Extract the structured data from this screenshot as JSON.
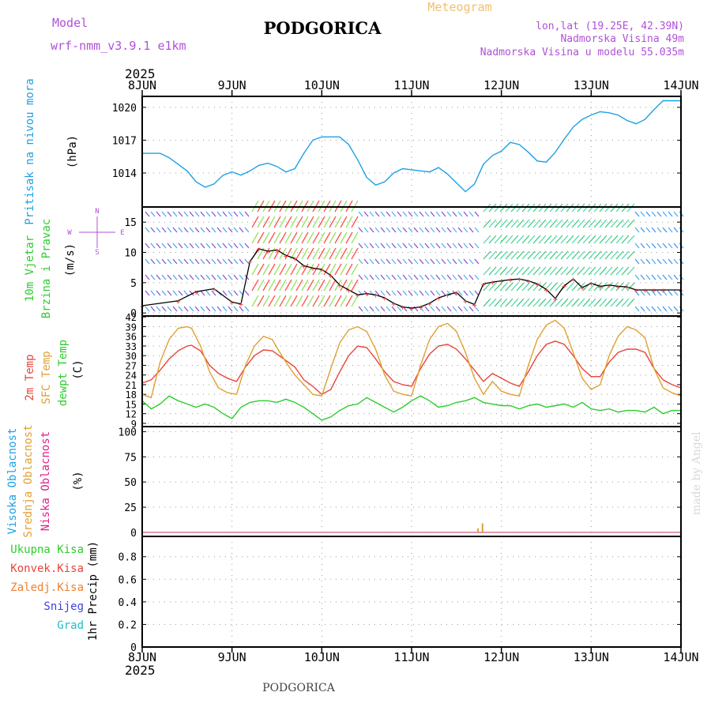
{
  "header": {
    "model_label": "Model",
    "model_name": "wrf-nmm_v3.9.1 e1km",
    "title": "PODGORICA",
    "product": "Meteogram",
    "location_line": "lon,lat (19.25E, 42.39N)",
    "elevation_line": "Nadmorska Visina 49m",
    "model_elevation_line": "Nadmorska Visina u modelu 55.035m",
    "footer_title": "PODGORICA",
    "credit": "made by Angel"
  },
  "colors": {
    "pressure": "#1ea0e6",
    "temp2m": "#e8453c",
    "sfc_temp": "#e0a030",
    "dewpoint": "#2ecc2e",
    "wind_speed": "#000000",
    "gust_marker": "#e8453c",
    "purple_text": "#b050d8",
    "orange_text": "#f0c070",
    "precip_total": "#2ecc2e",
    "precip_conv": "#e8453c",
    "precip_frozen": "#f08030",
    "snow": "#4040e0",
    "hail": "#20c0c0",
    "cloud_high": "#1ea0e6",
    "cloud_mid": "#e0a030",
    "cloud_low": "#e0208a"
  },
  "chart_data": [
    {
      "type": "line",
      "panel": "pressure",
      "title": "",
      "ylabel_lines": [
        "Pritisak na nivou mora",
        "(hPa)"
      ],
      "x_ticks": [
        "8JUN",
        "9JUN",
        "10JUN",
        "11JUN",
        "12JUN",
        "13JUN",
        "14JUN"
      ],
      "x_year": "2025",
      "y_ticks": [
        1014,
        1017,
        1020
      ],
      "ylim": [
        1010.9,
        1021
      ],
      "grid": true,
      "series": [
        {
          "x": [
            0,
            0.2,
            0.3,
            0.5,
            0.6,
            0.7,
            0.8,
            0.9,
            1.0,
            1.1,
            1.2,
            1.3,
            1.4,
            1.5,
            1.6,
            1.7,
            1.8,
            1.9,
            2.0,
            2.1,
            2.2,
            2.3,
            2.4,
            2.5,
            2.6,
            2.7,
            2.8,
            2.9,
            3.0,
            3.1,
            3.2,
            3.3,
            3.4,
            3.5,
            3.6,
            3.7,
            3.8,
            3.9,
            4.0,
            4.1,
            4.2,
            4.3,
            4.4,
            4.5,
            4.6,
            4.7,
            4.8,
            4.9,
            5.0,
            5.1,
            5.2,
            5.3,
            5.4,
            5.5,
            5.6,
            5.7,
            5.8,
            5.9,
            6.0
          ],
          "values": [
            1015.8,
            1015.8,
            1015.4,
            1014.2,
            1013.2,
            1012.7,
            1013.0,
            1013.8,
            1014.1,
            1013.8,
            1014.2,
            1014.7,
            1014.9,
            1014.6,
            1014.1,
            1014.4,
            1015.8,
            1017.0,
            1017.3,
            1017.3,
            1017.3,
            1016.6,
            1015.2,
            1013.6,
            1012.9,
            1013.2,
            1014.0,
            1014.4,
            1014.3,
            1014.2,
            1014.1,
            1014.5,
            1013.9,
            1013.1,
            1012.3,
            1013.0,
            1014.8,
            1015.6,
            1016.0,
            1016.8,
            1016.6,
            1015.9,
            1015.1,
            1015.0,
            1015.9,
            1017.1,
            1018.2,
            1018.9,
            1019.3,
            1019.6,
            1019.5,
            1019.3,
            1018.8,
            1018.5,
            1018.9,
            1019.8,
            1020.6,
            1020.6,
            1020.6
          ]
        }
      ]
    },
    {
      "type": "line",
      "panel": "wind",
      "title": "",
      "ylabel_lines": [
        "10m Vjetar",
        "Brzina i Pravac",
        "(m/s)"
      ],
      "compass": {
        "N": "N",
        "S": "S",
        "E": "E",
        "W": "W"
      },
      "y_ticks": [
        0,
        5,
        10,
        15
      ],
      "ylim": [
        -0.5,
        17.5
      ],
      "grid": true,
      "series": [
        {
          "name": "",
          "x": [
            0,
            0.4,
            0.6,
            0.8,
            1.0,
            1.1,
            1.2,
            1.3,
            1.4,
            1.5,
            1.6,
            1.7,
            1.8,
            1.9,
            2.0,
            2.1,
            2.2,
            2.3,
            2.4,
            2.5,
            2.6,
            2.7,
            2.8,
            2.9,
            3.0,
            3.1,
            3.2,
            3.3,
            3.4,
            3.5,
            3.6,
            3.7,
            3.8,
            3.9,
            4.0,
            4.1,
            4.2,
            4.3,
            4.4,
            4.5,
            4.6,
            4.7,
            4.8,
            4.9,
            5.0,
            5.1,
            5.2,
            5.3,
            5.4,
            5.5,
            5.6,
            5.7,
            5.8,
            6.0
          ],
          "values": [
            1.2,
            2.0,
            3.5,
            4.0,
            1.8,
            1.5,
            8.5,
            10.6,
            10.2,
            10.4,
            9.5,
            9.0,
            7.8,
            7.4,
            7.2,
            6.2,
            4.6,
            3.8,
            3.0,
            3.2,
            3.0,
            2.5,
            1.6,
            1.0,
            0.8,
            1.0,
            1.6,
            2.5,
            3.0,
            3.4,
            2.0,
            1.4,
            4.8,
            5.1,
            5.3,
            5.5,
            5.6,
            5.3,
            4.8,
            3.9,
            2.4,
            4.5,
            5.6,
            4.2,
            4.9,
            4.4,
            4.6,
            4.4,
            4.3,
            3.8,
            3.8,
            3.8,
            3.8,
            3.8
          ]
        }
      ]
    },
    {
      "type": "line",
      "panel": "temperature",
      "title": "",
      "ylabel_lines": [
        "2m Temp",
        "SFC Temp",
        "dewpt Temp",
        "(C)"
      ],
      "y_ticks": [
        9,
        12,
        15,
        18,
        21,
        24,
        27,
        30,
        33,
        36,
        39,
        42
      ],
      "ylim": [
        8,
        42.3
      ],
      "grid": true,
      "series": [
        {
          "name": "2m Temp",
          "x": [
            0,
            0.1,
            0.2,
            0.3,
            0.4,
            0.5,
            0.55,
            0.65,
            0.75,
            0.85,
            0.95,
            1.05,
            1.15,
            1.25,
            1.35,
            1.45,
            1.5,
            1.6,
            1.7,
            1.8,
            1.9,
            2.0,
            2.1,
            2.2,
            2.3,
            2.4,
            2.5,
            2.6,
            2.7,
            2.8,
            2.9,
            3.0,
            3.1,
            3.2,
            3.3,
            3.4,
            3.5,
            3.6,
            3.7,
            3.8,
            3.9,
            4.0,
            4.1,
            4.2,
            4.3,
            4.4,
            4.5,
            4.6,
            4.7,
            4.8,
            4.9,
            5.0,
            5.1,
            5.2,
            5.3,
            5.4,
            5.5,
            5.6,
            5.7,
            5.8,
            5.9,
            6.0
          ],
          "values": [
            21.5,
            22.5,
            25.5,
            29.0,
            31.5,
            33.0,
            33.2,
            31.5,
            27.0,
            24.5,
            23.0,
            22.0,
            26.5,
            30.0,
            31.8,
            31.5,
            30.5,
            28.5,
            26.5,
            22.5,
            20.5,
            18.0,
            19.5,
            25.0,
            30.0,
            33.0,
            32.5,
            29.0,
            25.0,
            22.0,
            21.0,
            20.5,
            26.0,
            30.5,
            33.0,
            33.5,
            32.0,
            29.0,
            25.5,
            22.0,
            24.5,
            23.0,
            21.5,
            20.5,
            25.0,
            30.0,
            33.5,
            34.5,
            33.5,
            30.0,
            26.0,
            23.5,
            23.5,
            28.0,
            31.0,
            32.0,
            32.0,
            31.0,
            26.0,
            22.5,
            21.0,
            20.0
          ]
        },
        {
          "name": "SFC Temp",
          "x": [
            0,
            0.1,
            0.2,
            0.3,
            0.4,
            0.5,
            0.55,
            0.65,
            0.75,
            0.85,
            0.95,
            1.05,
            1.15,
            1.25,
            1.35,
            1.45,
            1.5,
            1.6,
            1.7,
            1.8,
            1.9,
            2.0,
            2.1,
            2.2,
            2.3,
            2.4,
            2.5,
            2.6,
            2.7,
            2.8,
            2.9,
            3.0,
            3.1,
            3.2,
            3.3,
            3.4,
            3.5,
            3.6,
            3.7,
            3.8,
            3.9,
            4.0,
            4.1,
            4.2,
            4.3,
            4.4,
            4.5,
            4.6,
            4.7,
            4.8,
            4.9,
            5.0,
            5.1,
            5.2,
            5.3,
            5.4,
            5.5,
            5.6,
            5.7,
            5.8,
            5.9,
            6.0
          ],
          "values": [
            18.0,
            17.0,
            28.0,
            35.0,
            38.5,
            39.0,
            38.5,
            33.0,
            25.0,
            20.0,
            18.5,
            18.0,
            27.0,
            33.0,
            36.0,
            35.0,
            32.5,
            28.0,
            24.0,
            21.0,
            18.0,
            17.5,
            26.0,
            34.0,
            38.0,
            39.0,
            37.5,
            32.0,
            24.0,
            19.0,
            18.0,
            17.5,
            27.0,
            35.0,
            39.0,
            40.0,
            37.5,
            31.0,
            23.0,
            18.0,
            22.0,
            19.0,
            18.0,
            17.5,
            27.0,
            35.0,
            39.5,
            41.0,
            38.5,
            31.0,
            23.0,
            19.5,
            21.0,
            30.0,
            36.0,
            39.0,
            38.0,
            35.5,
            26.0,
            20.0,
            18.5,
            17.5
          ]
        },
        {
          "name": "dewpt Temp",
          "x": [
            0,
            0.1,
            0.2,
            0.3,
            0.4,
            0.5,
            0.6,
            0.7,
            0.8,
            0.9,
            1.0,
            1.1,
            1.2,
            1.3,
            1.4,
            1.5,
            1.6,
            1.7,
            1.8,
            1.9,
            2.0,
            2.1,
            2.2,
            2.3,
            2.4,
            2.5,
            2.6,
            2.7,
            2.8,
            2.9,
            3.0,
            3.1,
            3.2,
            3.3,
            3.4,
            3.5,
            3.6,
            3.7,
            3.8,
            3.9,
            4.0,
            4.1,
            4.2,
            4.3,
            4.4,
            4.5,
            4.6,
            4.7,
            4.8,
            4.9,
            5.0,
            5.1,
            5.2,
            5.3,
            5.4,
            5.5,
            5.6,
            5.7,
            5.8,
            5.9,
            6.0
          ],
          "values": [
            16.0,
            13.5,
            15.0,
            17.5,
            16.0,
            15.0,
            14.0,
            15.0,
            14.0,
            12.0,
            10.5,
            14.0,
            15.5,
            16.0,
            16.0,
            15.5,
            16.5,
            15.5,
            14.0,
            12.0,
            10.0,
            11.0,
            13.0,
            14.5,
            15.0,
            17.0,
            15.5,
            14.0,
            12.5,
            14.0,
            16.0,
            17.5,
            16.0,
            14.0,
            14.5,
            15.5,
            16.0,
            17.0,
            15.5,
            15.0,
            14.5,
            14.5,
            13.5,
            14.5,
            15.0,
            14.0,
            14.5,
            15.0,
            14.0,
            15.5,
            13.5,
            13.0,
            13.5,
            12.5,
            13.0,
            13.0,
            12.5,
            14.0,
            12.0,
            13.0,
            13.0
          ]
        }
      ]
    },
    {
      "type": "bar",
      "panel": "cloud",
      "title": "",
      "ylabel_lines": [
        "Visoka Oblacnost",
        "Srednja Oblacnost",
        "Niska Oblacnost",
        "(%)"
      ],
      "y_ticks": [
        0,
        25,
        50,
        75,
        100
      ],
      "ylim": [
        -4,
        105
      ],
      "grid": true,
      "series": [
        {
          "name": "Visoka Oblacnost",
          "x": [
            3.77
          ],
          "values": [
            0
          ]
        },
        {
          "name": "Srednja Oblacnost",
          "x": [
            3.74,
            3.79
          ],
          "values": [
            4,
            9
          ]
        },
        {
          "name": "Niska Oblacnost",
          "x": [
            3.77
          ],
          "values": [
            0
          ]
        }
      ]
    },
    {
      "type": "bar",
      "panel": "precip",
      "title": "",
      "ylabel_lines": [
        "1hr Precip (mm)"
      ],
      "legend": [
        "Ukupna Kisa",
        "Konvek.Kisa",
        "Zaledj.Kisa",
        "Snijeg",
        "Grad"
      ],
      "y_ticks": [
        0,
        0.2,
        0.4,
        0.6,
        0.8
      ],
      "ylim": [
        0,
        0.98
      ],
      "grid": true,
      "series": []
    }
  ]
}
